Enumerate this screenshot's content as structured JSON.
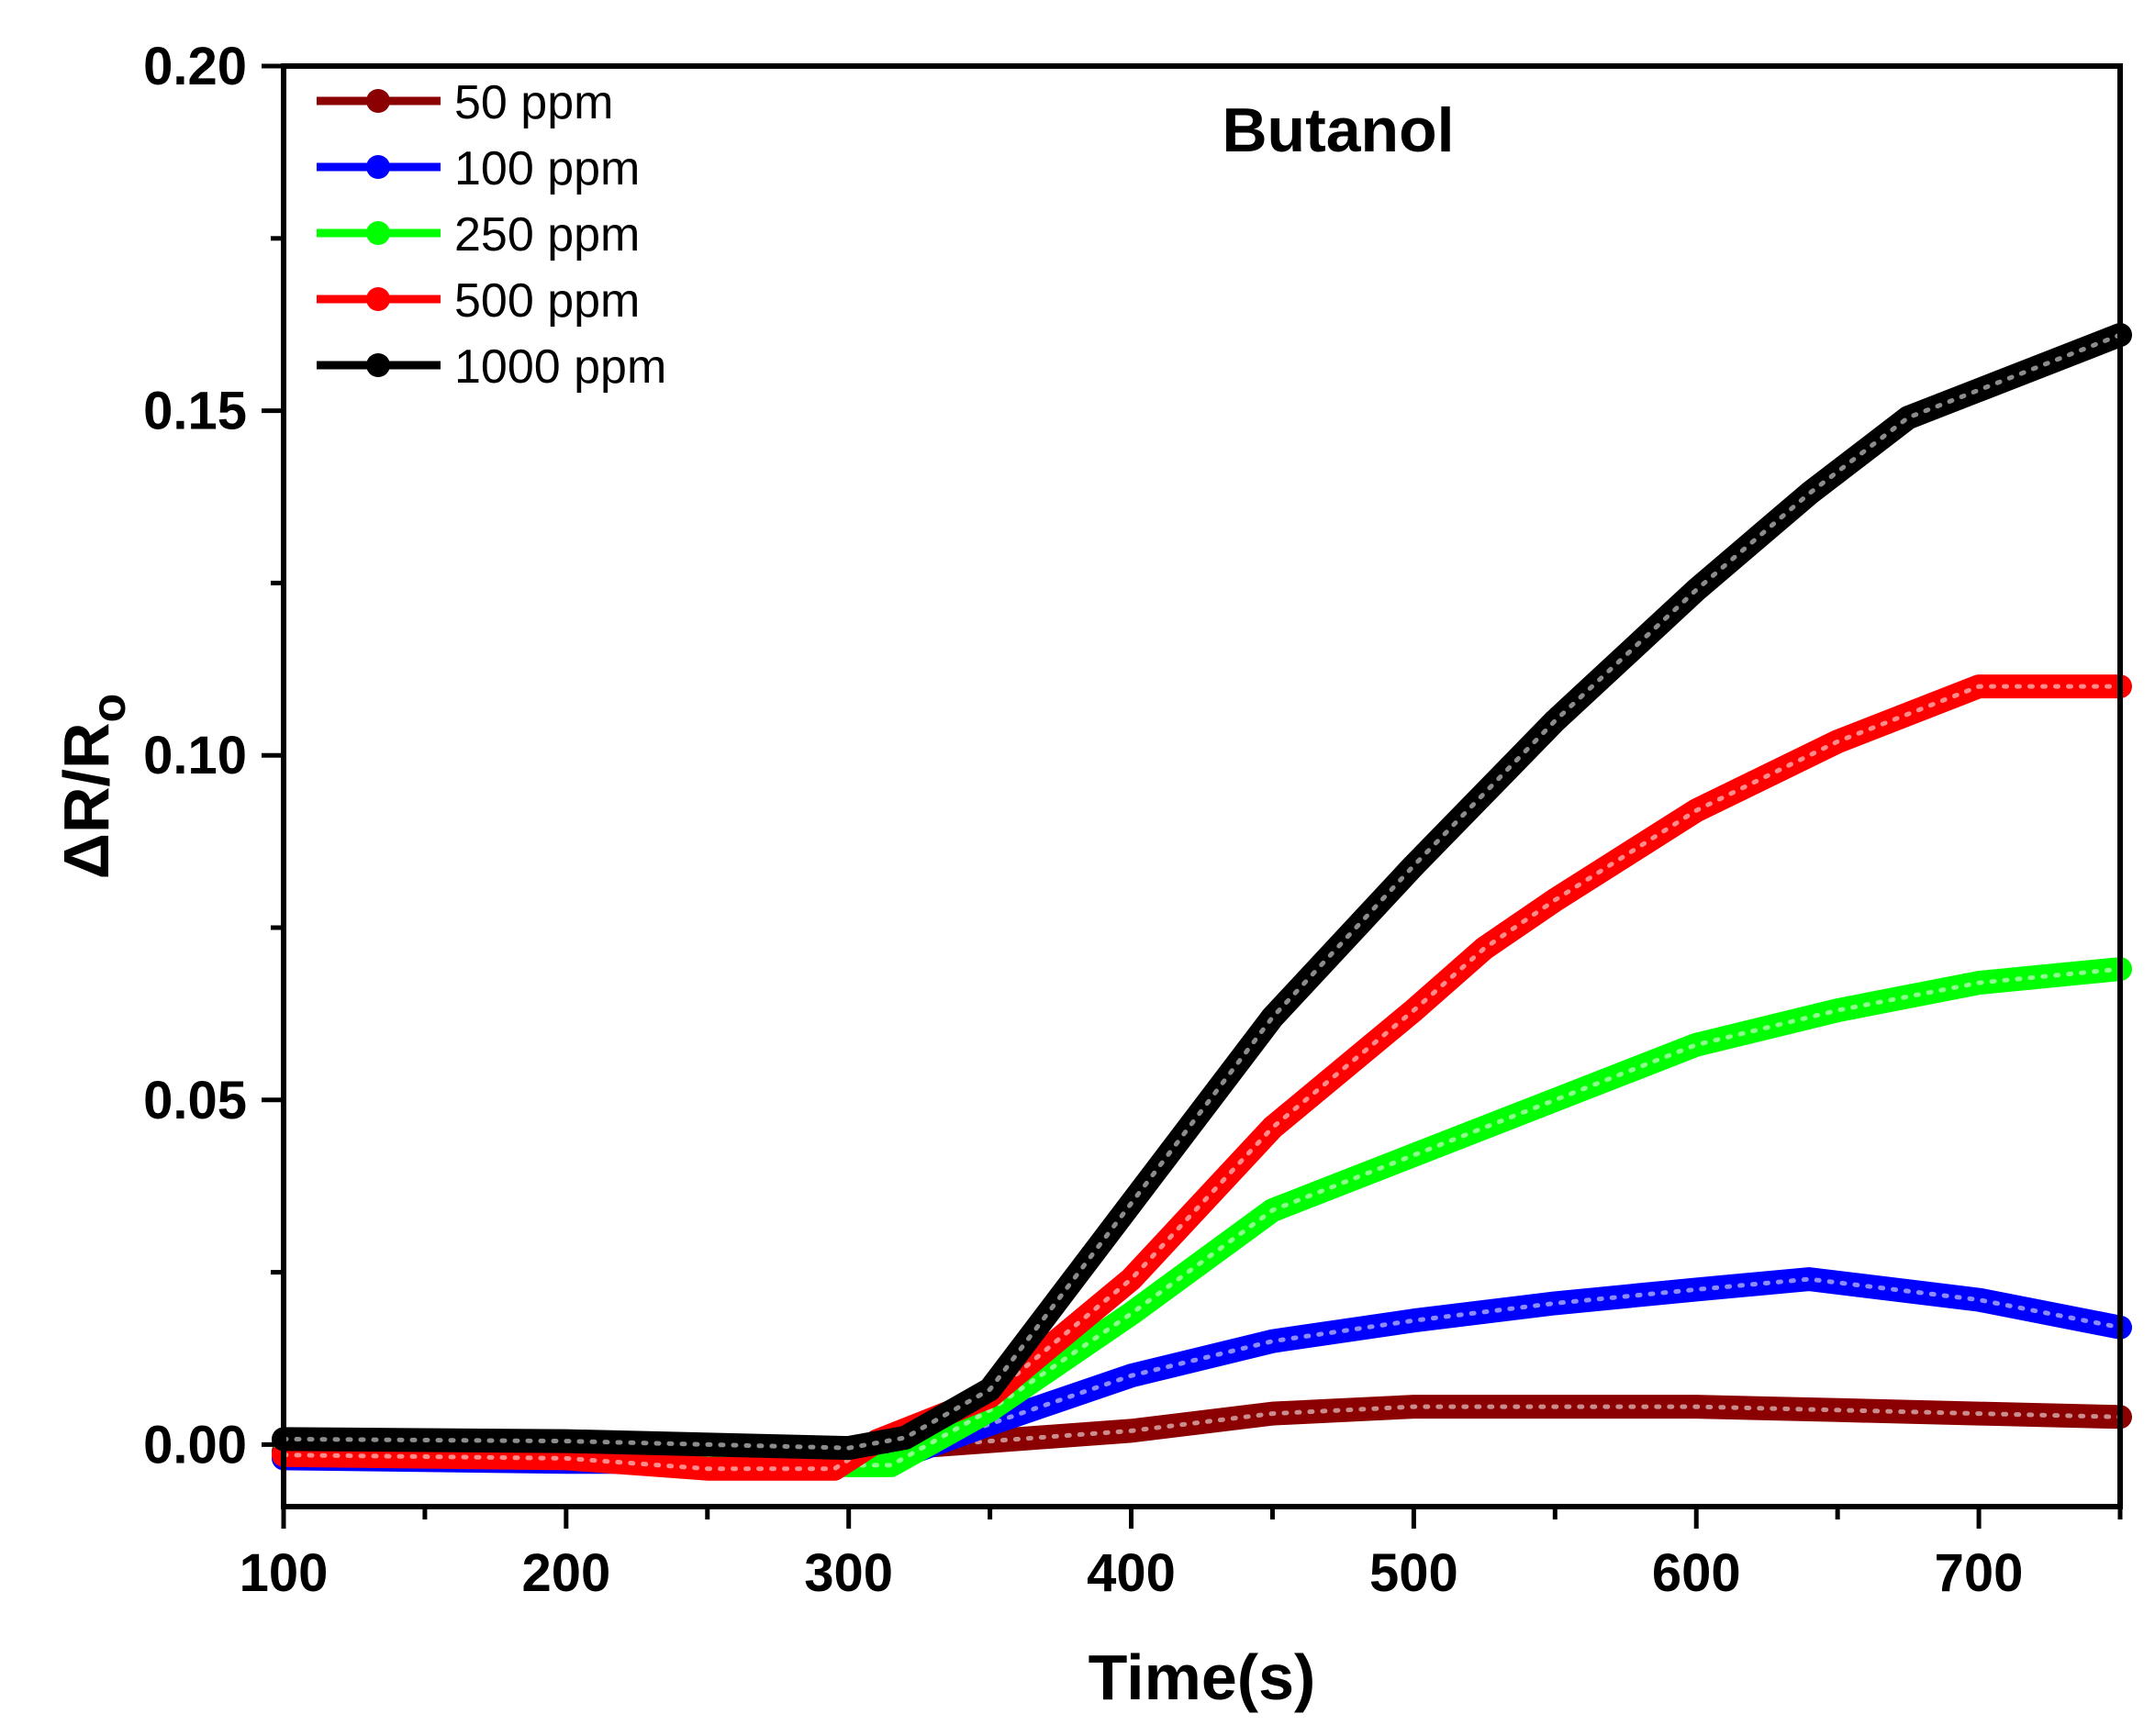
{
  "chart_data": {
    "type": "line",
    "title": "Butanol",
    "xlabel": "Time(s)",
    "ylabel": {
      "base": "ΔR/R",
      "subscript": "o"
    },
    "xlim": [
      100,
      750
    ],
    "ylim": [
      -0.009,
      0.2
    ],
    "xticks": [
      100,
      200,
      300,
      400,
      500,
      600,
      700
    ],
    "xtick_labels": [
      "100",
      "200",
      "300",
      "400",
      "500",
      "600",
      "700"
    ],
    "yticks": [
      0.0,
      0.05,
      0.1,
      0.15,
      0.2
    ],
    "ytick_labels": [
      "0.00",
      "0.05",
      "0.10",
      "0.15",
      "0.20"
    ],
    "legend_position": "top-left",
    "grid": false,
    "series": [
      {
        "name": "50 ppm",
        "color": "#8B0000",
        "points": [
          [
            100,
            -0.001
          ],
          [
            200,
            -0.0015
          ],
          [
            250,
            -0.0015
          ],
          [
            300,
            -0.001
          ],
          [
            350,
            0.0005
          ],
          [
            400,
            0.002
          ],
          [
            450,
            0.0045
          ],
          [
            500,
            0.0055
          ],
          [
            550,
            0.0055
          ],
          [
            600,
            0.0055
          ],
          [
            650,
            0.005
          ],
          [
            700,
            0.0045
          ],
          [
            750,
            0.004
          ]
        ]
      },
      {
        "name": "100 ppm",
        "color": "#0000FF",
        "points": [
          [
            100,
            -0.002
          ],
          [
            200,
            -0.0025
          ],
          [
            300,
            -0.0025
          ],
          [
            320,
            -0.0015
          ],
          [
            350,
            0.003
          ],
          [
            400,
            0.01
          ],
          [
            450,
            0.015
          ],
          [
            500,
            0.018
          ],
          [
            550,
            0.0205
          ],
          [
            600,
            0.0225
          ],
          [
            640,
            0.024
          ],
          [
            700,
            0.021
          ],
          [
            750,
            0.017
          ]
        ]
      },
      {
        "name": "250 ppm",
        "color": "#00FF00",
        "points": [
          [
            100,
            0.0005
          ],
          [
            200,
            -0.001
          ],
          [
            300,
            -0.003
          ],
          [
            315,
            -0.003
          ],
          [
            350,
            0.005
          ],
          [
            400,
            0.019
          ],
          [
            450,
            0.034
          ],
          [
            500,
            0.042
          ],
          [
            550,
            0.05
          ],
          [
            600,
            0.058
          ],
          [
            650,
            0.063
          ],
          [
            700,
            0.067
          ],
          [
            750,
            0.069
          ]
        ]
      },
      {
        "name": "500 ppm",
        "color": "#FF0000",
        "points": [
          [
            100,
            -0.0015
          ],
          [
            200,
            -0.002
          ],
          [
            250,
            -0.0035
          ],
          [
            295,
            -0.0035
          ],
          [
            310,
            0.0005
          ],
          [
            350,
            0.007
          ],
          [
            400,
            0.024
          ],
          [
            450,
            0.046
          ],
          [
            500,
            0.063
          ],
          [
            525,
            0.072
          ],
          [
            550,
            0.079
          ],
          [
            600,
            0.092
          ],
          [
            650,
            0.102
          ],
          [
            700,
            0.11
          ],
          [
            750,
            0.11
          ]
        ]
      },
      {
        "name": "1000 ppm",
        "color": "#000000",
        "points": [
          [
            100,
            0.0008
          ],
          [
            200,
            0.0005
          ],
          [
            300,
            -0.0005
          ],
          [
            320,
            0.001
          ],
          [
            350,
            0.008
          ],
          [
            400,
            0.035
          ],
          [
            450,
            0.062
          ],
          [
            500,
            0.084
          ],
          [
            550,
            0.105
          ],
          [
            600,
            0.124
          ],
          [
            640,
            0.138
          ],
          [
            675,
            0.149
          ],
          [
            700,
            0.153
          ],
          [
            750,
            0.161
          ]
        ]
      }
    ]
  }
}
